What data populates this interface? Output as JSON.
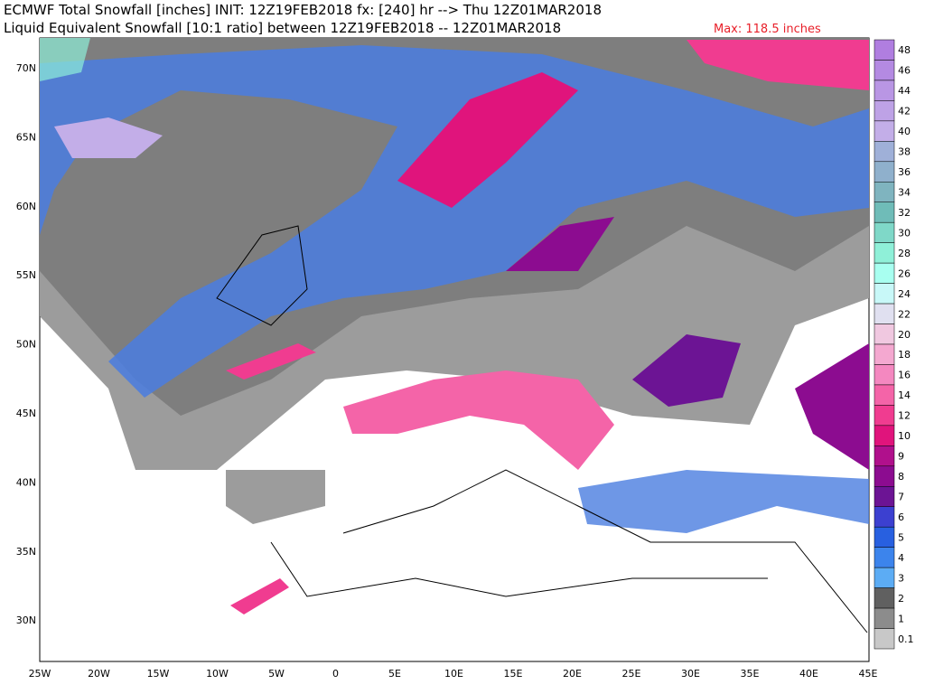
{
  "header": {
    "line1": "ECMWF Total Snowfall [inches] INIT: 12Z19FEB2018 fx: [240] hr --> Thu 12Z01MAR2018",
    "line2": "Liquid Equivalent Snowfall [10:1 ratio] between 12Z19FEB2018 -- 12Z01MAR2018",
    "max": "Max: 118.5 inches"
  },
  "map": {
    "lat_labels": [
      "70N",
      "65N",
      "60N",
      "55N",
      "50N",
      "45N",
      "40N",
      "35N",
      "30N"
    ],
    "lon_labels": [
      "25W",
      "20W",
      "15W",
      "10W",
      "5W",
      "0",
      "5E",
      "10E",
      "15E",
      "20E",
      "25E",
      "30E",
      "35E",
      "40E",
      "45E"
    ]
  },
  "colorbar": {
    "labels": [
      "48",
      "46",
      "44",
      "42",
      "40",
      "38",
      "36",
      "34",
      "32",
      "30",
      "28",
      "26",
      "24",
      "22",
      "20",
      "18",
      "16",
      "14",
      "12",
      "10",
      "9",
      "8",
      "7",
      "6",
      "5",
      "4",
      "3",
      "2",
      "1",
      "0.1"
    ],
    "colors": [
      "#b07ee0",
      "#b48ae2",
      "#b996e4",
      "#bea2e6",
      "#c3aee8",
      "#9fb0d8",
      "#8fb0cc",
      "#7fb4bf",
      "#6fbcb8",
      "#7fd8c8",
      "#8ff0d8",
      "#a8fff0",
      "#c8f8f8",
      "#e0e0f0",
      "#f0c8e0",
      "#f4a8d0",
      "#f488c0",
      "#f464a8",
      "#f03c90",
      "#e0147c",
      "#b0108c",
      "#8c0c90",
      "#6c1494",
      "#3c40d0",
      "#2860e0",
      "#3c84ec",
      "#5cacf4",
      "#606060",
      "#8c8c8c",
      "#c8c8c8"
    ]
  }
}
